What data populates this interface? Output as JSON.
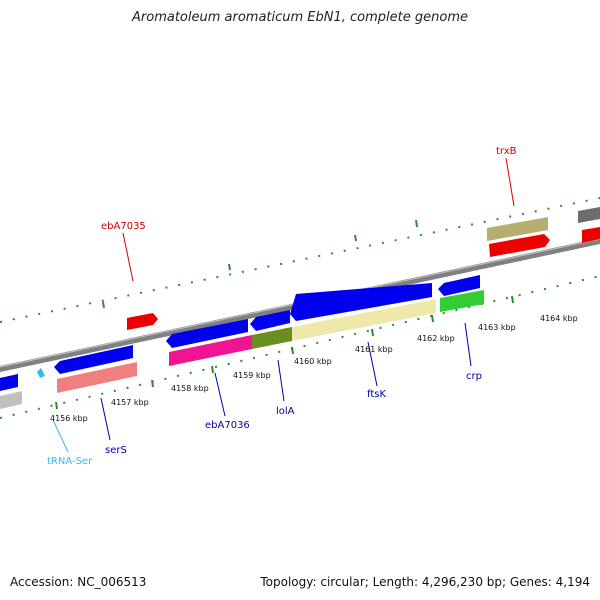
{
  "title": "Aromatoleum aromaticum EbN1, complete genome",
  "footer": {
    "accession": "Accession: NC_006513",
    "topology": "Topology: circular; Length: 4,296,230 bp; Genes: 4,194"
  },
  "colors": {
    "backbone": "#808080",
    "tick": "#2e8b2e",
    "label_forward": "#cc0000",
    "label_reverse": "#0000aa",
    "label_trna": "#33bbee"
  },
  "kbp_labels": [
    "4156 kbp",
    "4157 kbp",
    "4158 kbp",
    "4159 kbp",
    "4160 kbp",
    "4161 kbp",
    "4162 kbp",
    "4163 kbp",
    "4164 kbp"
  ],
  "gene_labels": [
    {
      "id": "trxB",
      "text": "trxB",
      "color": "#cc0000"
    },
    {
      "id": "ebA7035",
      "text": "ebA7035",
      "color": "#cc0000"
    },
    {
      "id": "tRNA-Ser",
      "text": "tRNA-Ser",
      "color": "#33bbee"
    },
    {
      "id": "serS",
      "text": "serS",
      "color": "#0000aa"
    },
    {
      "id": "ebA7036",
      "text": "ebA7036",
      "color": "#0000aa"
    },
    {
      "id": "lolA",
      "text": "lolA",
      "color": "#0000aa"
    },
    {
      "id": "ftsK",
      "text": "ftsK",
      "color": "#0000aa"
    },
    {
      "id": "crp",
      "text": "crp",
      "color": "#0000aa"
    }
  ]
}
